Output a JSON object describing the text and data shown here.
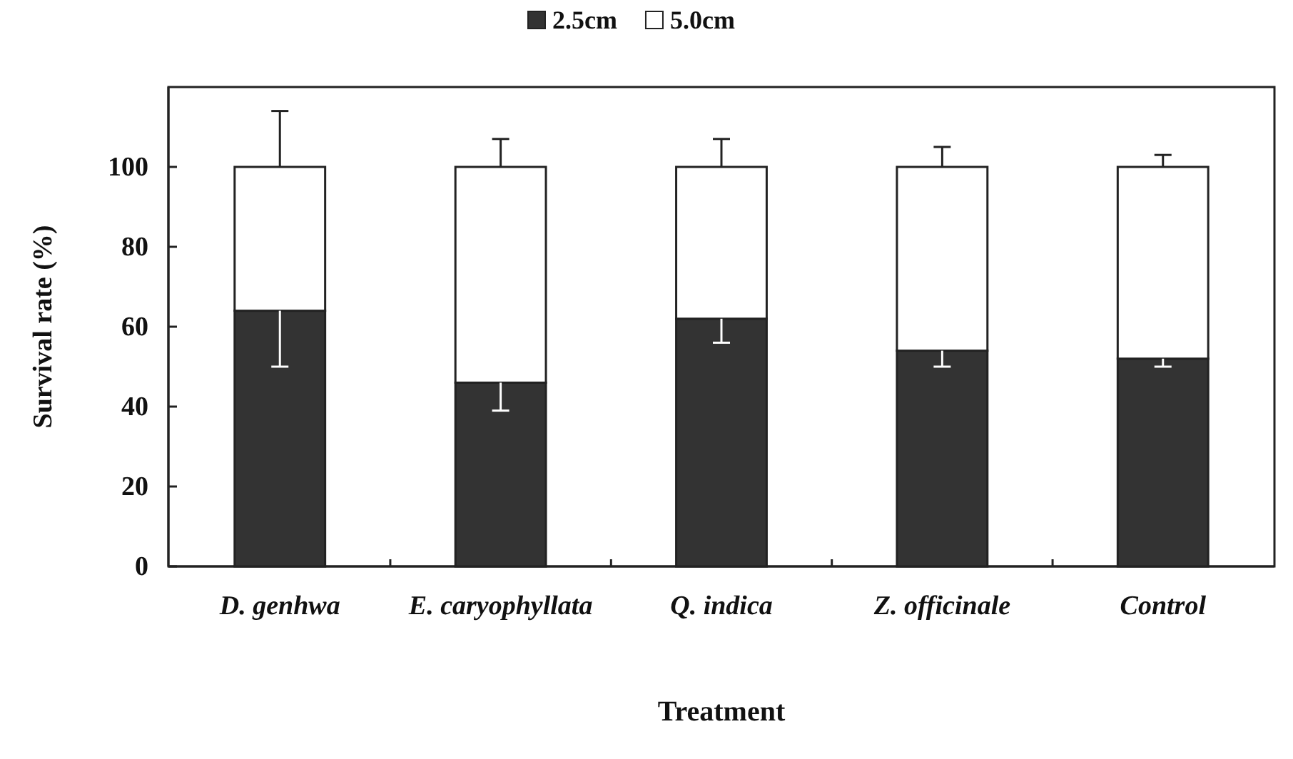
{
  "chart_data": {
    "type": "bar",
    "stacked": true,
    "xlabel": "Treatment",
    "ylabel": "Survival rate (%)",
    "categories": [
      "D. genhwa",
      "E. caryophyllata",
      "Q. indica",
      "Z. officinale",
      "Control"
    ],
    "series": [
      {
        "name": "2.5cm",
        "color": "#333333",
        "values": [
          64,
          46,
          62,
          54,
          52
        ],
        "errors": [
          [
            50,
            64
          ],
          [
            39,
            46
          ],
          [
            56,
            62
          ],
          [
            50,
            54
          ],
          [
            50,
            52
          ]
        ]
      },
      {
        "name": "5.0cm",
        "color": "#ffffff",
        "values": [
          36,
          54,
          38,
          46,
          48
        ],
        "errors": [
          [
            100,
            114
          ],
          [
            100,
            107
          ],
          [
            100,
            107
          ],
          [
            100,
            105
          ],
          [
            100,
            103
          ]
        ]
      }
    ],
    "ylim": [
      0,
      120
    ],
    "yticks": [
      0,
      20,
      40,
      60,
      80,
      100
    ],
    "legend": "top",
    "grid": false
  }
}
